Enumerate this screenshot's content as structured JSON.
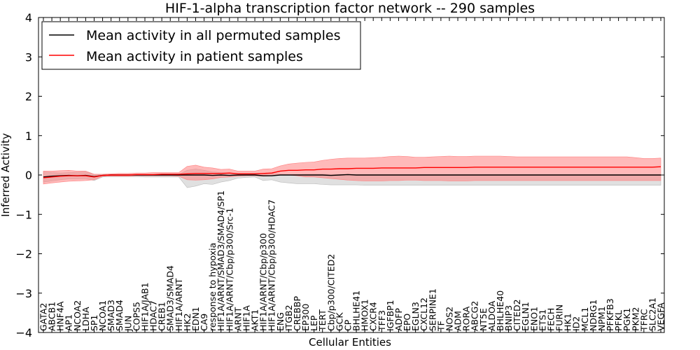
{
  "chart_data": {
    "type": "line",
    "title": "HIF-1-alpha transcription factor network -- 290 samples",
    "xlabel": "Cellular Entities",
    "ylabel": "Inferred Activity",
    "ylim": [
      -4,
      4
    ],
    "yticks": [
      4,
      3,
      2,
      1,
      0,
      -1,
      -2,
      -3,
      -4
    ],
    "ytick_labels": [
      "4",
      "3",
      "2",
      "1",
      "0",
      "−1",
      "−2",
      "−3",
      "−4"
    ],
    "grid": false,
    "legend_position": "top-left",
    "legend": [
      {
        "label": "Mean activity in all permuted samples",
        "color": "#000000"
      },
      {
        "label": "Mean activity in patient samples",
        "color": "#ff0000"
      }
    ],
    "categories": [
      "GATA2",
      "ABCB1",
      "HNF4A",
      "AP1",
      "NCOA2",
      "LDHA",
      "SP1",
      "NCOA1",
      "SMAD3",
      "SMAD4",
      "JUN",
      "COPS5",
      "HIF1A/JAB1",
      "HDAC7",
      "CREB1",
      "SMAD3/SMAD4",
      "HIF1A/ARNT",
      "HK2",
      "EDN1",
      "CA9",
      "response to hypoxia",
      "HIF1A/ARNT/SMAD3/SMAD4/SP1",
      "HIF1A/ARNT/Cbp/p300/Src-1",
      "ARNT",
      "HIF1A",
      "AKT1",
      "HIF1A/ARNT/Cbp/p300",
      "HIF1A/ARNT/Cbp/p300/HDAC7",
      "ENG",
      "ITGB2",
      "CREBBP",
      "EP300",
      "LEP",
      "TERT",
      "Cbp/p300/CITED2",
      "GCK",
      "CP",
      "BHLHE41",
      "HMOX1",
      "CXCR4",
      "TFF3",
      "IGFBP1",
      "ADFP",
      "EPO",
      "EGLN3",
      "CXCL12",
      "SERPINE1",
      "TF",
      "NOS2",
      "ADM",
      "RORA",
      "ABCG2",
      "NT5E",
      "ALDOA",
      "BHLHE40",
      "BNIP3",
      "CITED2",
      "EGLN1",
      "ENO1",
      "ETS1",
      "FECH",
      "FURIN",
      "HK1",
      "ID2",
      "MCL1",
      "NDRG1",
      "NPM1",
      "PFKFB3",
      "PFKL",
      "PGK1",
      "PKM2",
      "TFRC",
      "SLC2A1",
      "VEGFA"
    ],
    "series": [
      {
        "name": "Mean activity in all permuted samples",
        "color": "#000000",
        "band_color": "#bbbbbb",
        "values": [
          -0.05,
          -0.03,
          -0.02,
          -0.01,
          -0.02,
          -0.01,
          -0.04,
          -0.01,
          0.0,
          0.0,
          0.0,
          0.0,
          0.0,
          0.0,
          0.0,
          0.0,
          0.0,
          0.0,
          0.0,
          0.0,
          -0.01,
          0.0,
          -0.01,
          0.0,
          0.0,
          0.0,
          -0.02,
          -0.02,
          0.0,
          0.0,
          0.0,
          0.0,
          0.0,
          0.0,
          -0.01,
          0.0,
          0.01,
          0.0,
          0.0,
          0.0,
          0.0,
          0.0,
          0.0,
          0.0,
          0.0,
          0.0,
          0.0,
          0.0,
          0.0,
          0.0,
          0.0,
          0.0,
          0.0,
          0.0,
          0.0,
          0.0,
          0.0,
          0.0,
          0.0,
          0.0,
          0.0,
          0.0,
          0.0,
          0.0,
          0.0,
          0.0,
          0.0,
          0.0,
          0.0,
          0.0,
          0.0,
          0.0,
          0.0,
          0.0
        ],
        "upper": [
          0.08,
          0.06,
          0.05,
          0.06,
          0.07,
          0.08,
          0.02,
          0.01,
          0.01,
          0.01,
          0.01,
          0.01,
          0.01,
          0.01,
          0.01,
          0.01,
          0.01,
          0.12,
          0.15,
          0.12,
          0.08,
          0.06,
          0.05,
          0.02,
          0.02,
          0.01,
          0.04,
          0.04,
          0.02,
          0.01,
          0.01,
          0.02,
          0.02,
          0.02,
          0.01,
          0.01,
          0.02,
          0.01,
          0.01,
          0.01,
          0.01,
          0.01,
          0.01,
          0.01,
          0.01,
          0.01,
          0.01,
          0.01,
          0.01,
          0.01,
          0.01,
          0.01,
          0.01,
          0.01,
          0.01,
          0.01,
          0.01,
          0.01,
          0.01,
          0.01,
          0.01,
          0.01,
          0.01,
          0.01,
          0.01,
          0.01,
          0.01,
          0.01,
          0.01,
          0.01,
          0.01,
          0.01,
          0.01,
          0.01
        ],
        "lower": [
          -0.18,
          -0.15,
          -0.12,
          -0.1,
          -0.1,
          -0.09,
          -0.14,
          -0.05,
          -0.04,
          -0.04,
          -0.04,
          -0.04,
          -0.05,
          -0.05,
          -0.05,
          -0.05,
          -0.05,
          -0.32,
          -0.28,
          -0.22,
          -0.24,
          -0.18,
          -0.14,
          -0.08,
          -0.06,
          -0.05,
          -0.14,
          -0.12,
          -0.18,
          -0.2,
          -0.22,
          -0.22,
          -0.22,
          -0.24,
          -0.25,
          -0.25,
          -0.25,
          -0.25,
          -0.26,
          -0.26,
          -0.26,
          -0.26,
          -0.26,
          -0.26,
          -0.26,
          -0.26,
          -0.26,
          -0.26,
          -0.26,
          -0.26,
          -0.26,
          -0.26,
          -0.26,
          -0.26,
          -0.26,
          -0.26,
          -0.26,
          -0.26,
          -0.26,
          -0.26,
          -0.26,
          -0.26,
          -0.26,
          -0.26,
          -0.26,
          -0.26,
          -0.26,
          -0.26,
          -0.26,
          -0.26,
          -0.26,
          -0.26,
          -0.26,
          -0.26
        ]
      },
      {
        "name": "Mean activity in patient samples",
        "color": "#ff0000",
        "band_color": "#ff8080",
        "values": [
          -0.07,
          -0.05,
          -0.03,
          -0.02,
          -0.02,
          -0.02,
          -0.05,
          -0.01,
          0.0,
          0.0,
          0.0,
          0.01,
          0.01,
          0.01,
          0.02,
          0.02,
          0.02,
          0.03,
          0.04,
          0.04,
          0.04,
          0.04,
          0.05,
          0.03,
          0.03,
          0.03,
          0.04,
          0.05,
          0.1,
          0.12,
          0.12,
          0.13,
          0.13,
          0.15,
          0.15,
          0.16,
          0.16,
          0.17,
          0.17,
          0.17,
          0.18,
          0.18,
          0.18,
          0.18,
          0.18,
          0.19,
          0.19,
          0.19,
          0.19,
          0.19,
          0.19,
          0.2,
          0.2,
          0.2,
          0.2,
          0.2,
          0.2,
          0.2,
          0.2,
          0.2,
          0.2,
          0.2,
          0.2,
          0.2,
          0.2,
          0.2,
          0.2,
          0.2,
          0.2,
          0.2,
          0.2,
          0.2,
          0.2,
          0.21
        ],
        "upper": [
          0.1,
          0.1,
          0.11,
          0.12,
          0.1,
          0.1,
          0.02,
          0.02,
          0.03,
          0.04,
          0.04,
          0.05,
          0.05,
          0.06,
          0.06,
          0.06,
          0.06,
          0.22,
          0.25,
          0.2,
          0.18,
          0.14,
          0.15,
          0.1,
          0.1,
          0.1,
          0.15,
          0.16,
          0.23,
          0.28,
          0.3,
          0.32,
          0.33,
          0.37,
          0.4,
          0.42,
          0.43,
          0.43,
          0.43,
          0.44,
          0.45,
          0.47,
          0.48,
          0.47,
          0.45,
          0.45,
          0.46,
          0.47,
          0.48,
          0.47,
          0.47,
          0.48,
          0.48,
          0.48,
          0.48,
          0.47,
          0.46,
          0.46,
          0.46,
          0.46,
          0.46,
          0.46,
          0.46,
          0.46,
          0.46,
          0.46,
          0.46,
          0.46,
          0.46,
          0.46,
          0.44,
          0.42,
          0.42,
          0.43
        ],
        "lower": [
          -0.23,
          -0.2,
          -0.18,
          -0.16,
          -0.15,
          -0.14,
          -0.12,
          -0.03,
          -0.03,
          -0.03,
          -0.03,
          -0.02,
          -0.02,
          -0.02,
          -0.02,
          -0.02,
          -0.03,
          -0.12,
          -0.13,
          -0.12,
          -0.1,
          -0.06,
          -0.05,
          -0.03,
          -0.02,
          -0.02,
          -0.03,
          -0.02,
          0.0,
          0.0,
          -0.02,
          -0.05,
          -0.05,
          -0.07,
          -0.09,
          -0.11,
          -0.13,
          -0.14,
          -0.15,
          -0.15,
          -0.15,
          -0.14,
          -0.14,
          -0.13,
          -0.13,
          -0.14,
          -0.14,
          -0.14,
          -0.15,
          -0.15,
          -0.15,
          -0.14,
          -0.14,
          -0.14,
          -0.14,
          -0.14,
          -0.14,
          -0.14,
          -0.14,
          -0.14,
          -0.14,
          -0.14,
          -0.14,
          -0.14,
          -0.14,
          -0.14,
          -0.14,
          -0.14,
          -0.14,
          -0.14,
          -0.14,
          -0.14,
          -0.14,
          -0.14
        ]
      }
    ]
  }
}
